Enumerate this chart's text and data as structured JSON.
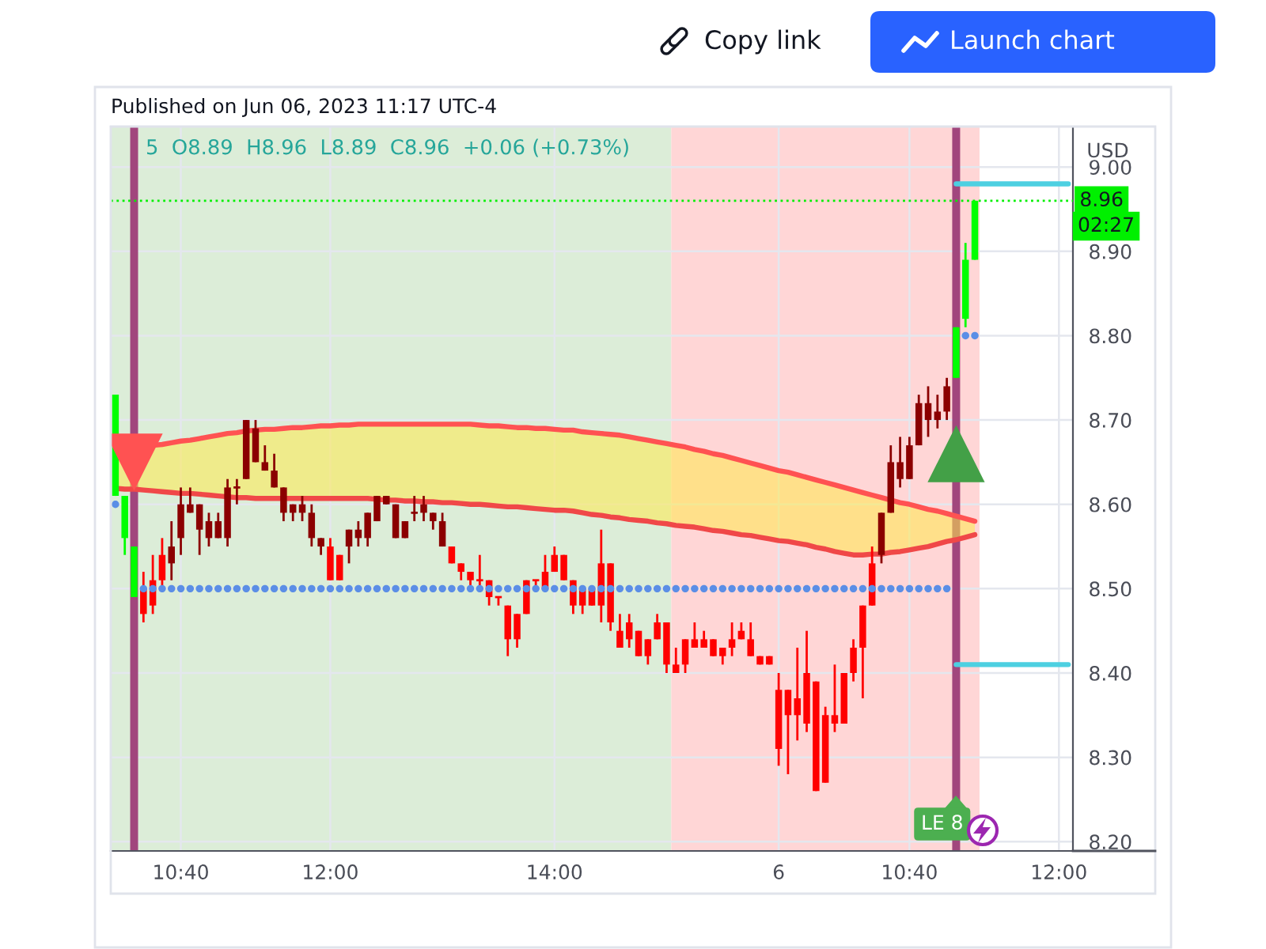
{
  "chart_data": {
    "type": "candlestick",
    "title": "Published on Jun 06, 2023 11:17 UTC-4",
    "subtitle": "5  O8.89  H8.96  L8.89  C8.96  +0.06 (+0.73%)",
    "ylabel": "USD",
    "categories": [
      null,
      null,
      null,
      null,
      null,
      null,
      null,
      "10:40",
      null,
      null,
      null,
      null,
      null,
      null,
      null,
      null,
      null,
      null,
      null,
      null,
      null,
      null,
      null,
      "12:00",
      null,
      null,
      null,
      null,
      null,
      null,
      null,
      null,
      null,
      null,
      null,
      null,
      null,
      null,
      null,
      null,
      null,
      null,
      null,
      null,
      null,
      null,
      null,
      "14:00",
      null,
      null,
      null,
      null,
      null,
      null,
      null,
      null,
      null,
      null,
      null,
      null,
      null,
      null,
      null,
      null,
      null,
      null,
      null,
      null,
      null,
      null,
      null,
      "6",
      null,
      null,
      null,
      null,
      null,
      null,
      null,
      null,
      null,
      null,
      null,
      null,
      null,
      "10:40",
      null,
      null,
      null,
      null,
      null,
      null,
      null,
      null,
      null,
      null,
      null,
      null,
      null,
      null,
      null,
      "12:00",
      null
    ],
    "ohlc": [
      [
        8.61,
        8.73,
        8.61,
        8.73
      ],
      [
        8.56,
        8.61,
        8.54,
        8.61
      ],
      [
        8.49,
        8.55,
        8.49,
        8.55
      ],
      [
        8.5,
        8.52,
        8.46,
        8.47
      ],
      [
        8.51,
        8.54,
        8.47,
        8.48
      ],
      [
        8.54,
        8.56,
        8.5,
        8.51
      ],
      [
        8.55,
        8.58,
        8.51,
        8.53
      ],
      [
        8.6,
        8.62,
        8.54,
        8.56
      ],
      [
        8.6,
        8.62,
        8.59,
        8.59
      ],
      [
        8.6,
        8.6,
        8.54,
        8.57
      ],
      [
        8.58,
        8.59,
        8.55,
        8.56
      ],
      [
        8.58,
        8.59,
        8.56,
        8.56
      ],
      [
        8.62,
        8.63,
        8.55,
        8.56
      ],
      [
        8.62,
        8.63,
        8.6,
        8.62
      ],
      [
        8.7,
        8.7,
        8.63,
        8.63
      ],
      [
        8.69,
        8.7,
        8.65,
        8.65
      ],
      [
        8.65,
        8.67,
        8.64,
        8.64
      ],
      [
        8.64,
        8.66,
        8.62,
        8.62
      ],
      [
        8.62,
        8.62,
        8.58,
        8.59
      ],
      [
        8.6,
        8.6,
        8.58,
        8.59
      ],
      [
        8.6,
        8.61,
        8.58,
        8.59
      ],
      [
        8.59,
        8.6,
        8.55,
        8.56
      ],
      [
        8.56,
        8.56,
        8.54,
        8.55
      ],
      [
        8.55,
        8.56,
        8.51,
        8.51
      ],
      [
        8.54,
        8.54,
        8.51,
        8.51
      ],
      [
        8.57,
        8.57,
        8.53,
        8.55
      ],
      [
        8.57,
        8.58,
        8.55,
        8.56
      ],
      [
        8.59,
        8.59,
        8.55,
        8.56
      ],
      [
        8.61,
        8.61,
        8.58,
        8.58
      ],
      [
        8.61,
        8.61,
        8.6,
        8.6
      ],
      [
        8.6,
        8.6,
        8.56,
        8.56
      ],
      [
        8.58,
        8.58,
        8.56,
        8.56
      ],
      [
        8.59,
        8.61,
        8.58,
        8.59
      ],
      [
        8.6,
        8.61,
        8.58,
        8.59
      ],
      [
        8.59,
        8.59,
        8.57,
        8.58
      ],
      [
        8.58,
        8.59,
        8.55,
        8.55
      ],
      [
        8.55,
        8.55,
        8.53,
        8.53
      ],
      [
        8.53,
        8.53,
        8.51,
        8.52
      ],
      [
        8.52,
        8.52,
        8.5,
        8.51
      ],
      [
        8.51,
        8.54,
        8.5,
        8.51
      ],
      [
        8.51,
        8.51,
        8.48,
        8.49
      ],
      [
        8.49,
        8.49,
        8.48,
        8.49
      ],
      [
        8.48,
        8.48,
        8.42,
        8.44
      ],
      [
        8.47,
        8.47,
        8.43,
        8.44
      ],
      [
        8.51,
        8.51,
        8.47,
        8.47
      ],
      [
        8.51,
        8.51,
        8.5,
        8.51
      ],
      [
        8.52,
        8.54,
        8.5,
        8.5
      ],
      [
        8.54,
        8.55,
        8.52,
        8.52
      ],
      [
        8.54,
        8.54,
        8.51,
        8.51
      ],
      [
        8.51,
        8.51,
        8.47,
        8.48
      ],
      [
        8.5,
        8.5,
        8.47,
        8.48
      ],
      [
        8.5,
        8.5,
        8.48,
        8.48
      ],
      [
        8.53,
        8.57,
        8.46,
        8.48
      ],
      [
        8.53,
        8.53,
        8.45,
        8.46
      ],
      [
        8.45,
        8.47,
        8.43,
        8.43
      ],
      [
        8.46,
        8.47,
        8.43,
        8.44
      ],
      [
        8.45,
        8.45,
        8.42,
        8.42
      ],
      [
        8.44,
        8.44,
        8.41,
        8.42
      ],
      [
        8.46,
        8.47,
        8.44,
        8.44
      ],
      [
        8.46,
        8.46,
        8.4,
        8.41
      ],
      [
        8.41,
        8.43,
        8.4,
        8.4
      ],
      [
        8.44,
        8.44,
        8.4,
        8.41
      ],
      [
        8.44,
        8.46,
        8.43,
        8.43
      ],
      [
        8.44,
        8.45,
        8.43,
        8.43
      ],
      [
        8.44,
        8.44,
        8.42,
        8.42
      ],
      [
        8.43,
        8.43,
        8.41,
        8.42
      ],
      [
        8.44,
        8.46,
        8.42,
        8.43
      ],
      [
        8.45,
        8.46,
        8.44,
        8.44
      ],
      [
        8.44,
        8.46,
        8.42,
        8.42
      ],
      [
        8.42,
        8.42,
        8.41,
        8.41
      ],
      [
        8.42,
        8.42,
        8.41,
        8.41
      ],
      [
        8.38,
        8.4,
        8.29,
        8.31
      ],
      [
        8.38,
        8.38,
        8.28,
        8.35
      ],
      [
        8.37,
        8.43,
        8.32,
        8.35
      ],
      [
        8.4,
        8.45,
        8.33,
        8.34
      ],
      [
        8.39,
        8.39,
        8.26,
        8.26
      ],
      [
        8.35,
        8.36,
        8.27,
        8.27
      ],
      [
        8.35,
        8.41,
        8.33,
        8.34
      ],
      [
        8.4,
        8.4,
        8.34,
        8.34
      ],
      [
        8.43,
        8.44,
        8.39,
        8.4
      ],
      [
        8.48,
        8.48,
        8.37,
        8.43
      ],
      [
        8.53,
        8.55,
        8.48,
        8.48
      ],
      [
        8.59,
        8.59,
        8.53,
        8.54
      ],
      [
        8.65,
        8.67,
        8.59,
        8.59
      ],
      [
        8.65,
        8.68,
        8.62,
        8.63
      ],
      [
        8.67,
        8.68,
        8.63,
        8.63
      ],
      [
        8.72,
        8.73,
        8.67,
        8.67
      ],
      [
        8.72,
        8.74,
        8.68,
        8.7
      ],
      [
        8.71,
        8.73,
        8.69,
        8.7
      ],
      [
        8.74,
        8.75,
        8.7,
        8.71
      ],
      [
        8.75,
        8.81,
        8.75,
        8.81
      ],
      [
        8.82,
        8.91,
        8.81,
        8.89
      ],
      [
        8.89,
        8.96,
        8.89,
        8.96
      ],
      null,
      null,
      null,
      null,
      null,
      null,
      null,
      null,
      null,
      null
    ],
    "colors": [
      "#00ff00",
      "#00ff00",
      "#00ff00",
      "#ff0000",
      "#ff0000",
      "#ff0000",
      "#8b0000",
      "#8b0000",
      "#8b0000",
      "#8b0000",
      "#8b0000",
      "#8b0000",
      "#8b0000",
      "#8b0000",
      "#8b0000",
      "#8b0000",
      "#8b0000",
      "#8b0000",
      "#8b0000",
      "#8b0000",
      "#8b0000",
      "#8b0000",
      "#8b0000",
      "#ff0000",
      "#ff0000",
      "#8b0000",
      "#8b0000",
      "#8b0000",
      "#8b0000",
      "#8b0000",
      "#8b0000",
      "#8b0000",
      "#8b0000",
      "#8b0000",
      "#8b0000",
      "#8b0000",
      "#ff0000",
      "#ff0000",
      "#ff0000",
      "#ff0000",
      "#ff0000",
      "#ff0000",
      "#ff0000",
      "#ff0000",
      "#ff0000",
      "#ff0000",
      "#ff0000",
      "#ff0000",
      "#ff0000",
      "#ff0000",
      "#ff0000",
      "#ff0000",
      "#ff0000",
      "#ff0000",
      "#ff0000",
      "#ff0000",
      "#ff0000",
      "#ff0000",
      "#ff0000",
      "#ff0000",
      "#ff0000",
      "#ff0000",
      "#ff0000",
      "#ff0000",
      "#ff0000",
      "#ff0000",
      "#ff0000",
      "#ff0000",
      "#ff0000",
      "#ff0000",
      "#ff0000",
      "#ff0000",
      "#ff0000",
      "#ff0000",
      "#ff0000",
      "#ff0000",
      "#ff0000",
      "#ff0000",
      "#ff0000",
      "#ff0000",
      "#ff0000",
      "#ff0000",
      "#8b0000",
      "#8b0000",
      "#8b0000",
      "#8b0000",
      "#8b0000",
      "#8b0000",
      "#8b0000",
      "#8b0000",
      "#00ff00",
      "#00ff00",
      "#00ff00",
      null,
      null,
      null,
      null,
      null,
      null,
      null,
      null,
      null,
      null
    ],
    "series": [
      {
        "type": "line",
        "color": "#ff5252",
        "values": [
          8.665,
          8.666,
          8.667,
          8.668,
          8.67,
          8.671,
          8.673,
          8.675,
          8.676,
          8.678,
          8.68,
          8.682,
          8.684,
          8.685,
          8.687,
          8.688,
          8.689,
          8.689,
          8.69,
          8.691,
          8.691,
          8.692,
          8.693,
          8.693,
          8.694,
          8.694,
          8.695,
          8.695,
          8.695,
          8.695,
          8.695,
          8.695,
          8.695,
          8.695,
          8.695,
          8.695,
          8.695,
          8.695,
          8.695,
          8.694,
          8.693,
          8.693,
          8.692,
          8.691,
          8.691,
          8.69,
          8.69,
          8.689,
          8.688,
          8.688,
          8.686,
          8.685,
          8.684,
          8.683,
          8.682,
          8.68,
          8.678,
          8.676,
          8.674,
          8.672,
          8.67,
          8.668,
          8.665,
          8.663,
          8.66,
          8.658,
          8.655,
          8.652,
          8.649,
          8.646,
          8.643,
          8.64,
          8.638,
          8.635,
          8.632,
          8.629,
          8.626,
          8.623,
          8.62,
          8.617,
          8.614,
          8.611,
          8.608,
          8.605,
          8.602,
          8.6,
          8.597,
          8.594,
          8.592,
          8.589,
          8.586,
          8.583,
          8.58,
          null,
          null,
          null,
          null,
          null,
          null,
          null,
          null,
          null,
          null
        ],
        "upper": [
          8.665,
          8.666,
          8.667,
          8.668,
          8.67,
          8.671,
          8.673,
          8.675,
          8.676,
          8.678,
          8.68,
          8.682,
          8.684,
          8.685,
          8.687,
          8.688,
          8.689,
          8.689,
          8.69,
          8.691,
          8.691,
          8.692,
          8.693,
          8.693,
          8.694,
          8.694,
          8.695,
          8.695,
          8.695,
          8.695,
          8.695,
          8.695,
          8.695,
          8.695,
          8.695,
          8.695,
          8.695,
          8.695,
          8.695,
          8.694,
          8.693,
          8.693,
          8.692,
          8.691,
          8.691,
          8.69,
          8.69,
          8.689,
          8.688,
          8.688,
          8.686,
          8.685,
          8.684,
          8.683,
          8.682,
          8.68,
          8.678,
          8.676,
          8.674,
          8.672,
          8.67,
          8.668,
          8.665,
          8.663,
          8.66,
          8.658,
          8.655,
          8.652,
          8.649,
          8.646,
          8.643,
          8.64,
          8.638,
          8.635,
          8.632,
          8.629,
          8.626,
          8.623,
          8.62,
          8.617,
          8.614,
          8.611,
          8.608,
          8.605,
          8.602,
          8.6,
          8.597,
          8.594,
          8.592,
          8.589,
          8.586,
          8.583,
          8.58,
          null,
          null,
          null,
          null,
          null,
          null,
          null,
          null,
          null,
          null
        ],
        "lower": [
          8.619,
          8.618,
          8.618,
          8.617,
          8.616,
          8.615,
          8.614,
          8.613,
          8.613,
          8.612,
          8.611,
          8.61,
          8.609,
          8.608,
          8.608,
          8.607,
          8.607,
          8.607,
          8.607,
          8.607,
          8.607,
          8.607,
          8.607,
          8.607,
          8.607,
          8.607,
          8.607,
          8.607,
          8.606,
          8.605,
          8.605,
          8.604,
          8.604,
          8.603,
          8.603,
          8.602,
          8.602,
          8.601,
          8.6,
          8.6,
          8.599,
          8.598,
          8.597,
          8.597,
          8.596,
          8.595,
          8.594,
          8.593,
          8.593,
          8.592,
          8.59,
          8.588,
          8.587,
          8.585,
          8.584,
          8.582,
          8.581,
          8.58,
          8.578,
          8.577,
          8.575,
          8.574,
          8.573,
          8.571,
          8.569,
          8.568,
          8.566,
          8.564,
          8.563,
          8.561,
          8.559,
          8.557,
          8.556,
          8.554,
          8.552,
          8.549,
          8.547,
          8.544,
          8.542,
          8.54,
          8.54,
          8.541,
          8.541,
          8.543,
          8.544,
          8.546,
          8.548,
          8.55,
          8.553,
          8.556,
          8.558,
          8.561,
          8.564,
          null,
          null,
          null,
          null,
          null,
          null,
          null,
          null,
          null,
          null
        ]
      },
      {
        "type": "line",
        "color": "#f04848",
        "values": [
          8.619,
          8.618,
          8.618,
          8.617,
          8.616,
          8.615,
          8.614,
          8.613,
          8.613,
          8.612,
          8.611,
          8.61,
          8.609,
          8.608,
          8.608,
          8.607,
          8.607,
          8.607,
          8.607,
          8.607,
          8.607,
          8.607,
          8.607,
          8.607,
          8.607,
          8.607,
          8.607,
          8.607,
          8.606,
          8.605,
          8.605,
          8.604,
          8.604,
          8.603,
          8.603,
          8.602,
          8.602,
          8.601,
          8.6,
          8.6,
          8.599,
          8.598,
          8.597,
          8.597,
          8.596,
          8.595,
          8.594,
          8.593,
          8.593,
          8.592,
          8.59,
          8.588,
          8.587,
          8.585,
          8.584,
          8.582,
          8.581,
          8.58,
          8.578,
          8.577,
          8.575,
          8.574,
          8.573,
          8.571,
          8.569,
          8.568,
          8.566,
          8.564,
          8.563,
          8.561,
          8.559,
          8.557,
          8.556,
          8.554,
          8.552,
          8.549,
          8.547,
          8.544,
          8.542,
          8.54,
          8.54,
          8.541,
          8.541,
          8.543,
          8.544,
          8.546,
          8.548,
          8.55,
          8.553,
          8.556,
          8.558,
          8.561,
          8.564,
          null,
          null,
          null,
          null,
          null,
          null,
          null,
          null,
          null,
          null
        ]
      },
      {
        "type": "scatter",
        "color": "#5b8ee6",
        "marker": "circle",
        "values": [
          8.6,
          null,
          null,
          8.5,
          8.5,
          8.5,
          8.5,
          8.5,
          8.5,
          8.5,
          8.5,
          8.5,
          8.5,
          8.5,
          8.5,
          8.5,
          8.5,
          8.5,
          8.5,
          8.5,
          8.5,
          8.5,
          8.5,
          8.5,
          8.5,
          8.5,
          8.5,
          8.5,
          8.5,
          8.5,
          8.5,
          8.5,
          8.5,
          8.5,
          8.5,
          8.5,
          8.5,
          8.5,
          8.5,
          8.5,
          8.5,
          8.5,
          8.5,
          8.5,
          8.5,
          8.5,
          8.5,
          8.5,
          8.5,
          8.5,
          8.5,
          8.5,
          8.5,
          8.5,
          8.5,
          8.5,
          8.5,
          8.5,
          8.5,
          8.5,
          8.5,
          8.5,
          8.5,
          8.5,
          8.5,
          8.5,
          8.5,
          8.5,
          8.5,
          8.5,
          8.5,
          8.5,
          8.5,
          8.5,
          8.5,
          8.5,
          8.5,
          8.5,
          8.5,
          8.5,
          8.5,
          8.5,
          8.5,
          8.5,
          8.5,
          8.5,
          8.5,
          8.5,
          8.5,
          8.5,
          null,
          8.8,
          8.8,
          null,
          null,
          null,
          null,
          null,
          null,
          null,
          null,
          null,
          null
        ]
      },
      {
        "type": "line",
        "color": "#4dd0e1",
        "values": [
          null,
          null,
          null,
          null,
          null,
          null,
          null,
          null,
          null,
          null,
          null,
          null,
          null,
          null,
          null,
          null,
          null,
          null,
          null,
          null,
          null,
          null,
          null,
          null,
          null,
          null,
          null,
          null,
          null,
          null,
          null,
          null,
          null,
          null,
          null,
          null,
          null,
          null,
          null,
          null,
          null,
          null,
          null,
          null,
          null,
          null,
          null,
          null,
          null,
          null,
          null,
          null,
          null,
          null,
          null,
          null,
          null,
          null,
          null,
          null,
          null,
          null,
          null,
          null,
          null,
          null,
          null,
          null,
          null,
          null,
          null,
          null,
          null,
          null,
          null,
          null,
          null,
          null,
          null,
          null,
          null,
          null,
          null,
          null,
          null,
          null,
          null,
          null,
          null,
          null,
          8.98,
          8.98,
          8.98,
          8.98,
          8.98,
          8.98,
          8.98,
          8.98,
          8.98,
          8.98,
          8.98,
          8.98,
          8.98
        ]
      },
      {
        "type": "line",
        "color": "#4dd0e1",
        "values": [
          null,
          null,
          null,
          null,
          null,
          null,
          null,
          null,
          null,
          null,
          null,
          null,
          null,
          null,
          null,
          null,
          null,
          null,
          null,
          null,
          null,
          null,
          null,
          null,
          null,
          null,
          null,
          null,
          null,
          null,
          null,
          null,
          null,
          null,
          null,
          null,
          null,
          null,
          null,
          null,
          null,
          null,
          null,
          null,
          null,
          null,
          null,
          null,
          null,
          null,
          null,
          null,
          null,
          null,
          null,
          null,
          null,
          null,
          null,
          null,
          null,
          null,
          null,
          null,
          null,
          null,
          null,
          null,
          null,
          null,
          null,
          null,
          null,
          null,
          null,
          null,
          null,
          null,
          null,
          null,
          null,
          null,
          null,
          null,
          null,
          null,
          null,
          null,
          null,
          null,
          8.41,
          8.41,
          8.41,
          8.41,
          8.41,
          8.41,
          8.41,
          8.41,
          8.41,
          8.41,
          8.41,
          8.41,
          8.41
        ]
      },
      {
        "type": "scatter",
        "color": "#ff5252",
        "marker": "triangle_down",
        "values": [
          null,
          null,
          8.65,
          null,
          null,
          null,
          null,
          null,
          null,
          null,
          null,
          null,
          null,
          null,
          null,
          null,
          null,
          null,
          null,
          null,
          null,
          null,
          null,
          null,
          null,
          null,
          null,
          null,
          null,
          null,
          null,
          null,
          null,
          null,
          null,
          null,
          null,
          null,
          null,
          null,
          null,
          null,
          null,
          null,
          null,
          null,
          null,
          null,
          null,
          null,
          null,
          null,
          null,
          null,
          null,
          null,
          null,
          null,
          null,
          null,
          null,
          null,
          null,
          null,
          null,
          null,
          null,
          null,
          null,
          null,
          null,
          null,
          null,
          null,
          null,
          null,
          null,
          null,
          null,
          null,
          null,
          null,
          null,
          null,
          null,
          null,
          null,
          null,
          null,
          null,
          null,
          null,
          null,
          null,
          null,
          null,
          null,
          null,
          null,
          null,
          null,
          null,
          null
        ]
      },
      {
        "type": "scatter",
        "color": "#43a047",
        "marker": "triangle",
        "values": [
          null,
          null,
          null,
          null,
          null,
          null,
          null,
          null,
          null,
          null,
          null,
          null,
          null,
          null,
          null,
          null,
          null,
          null,
          null,
          null,
          null,
          null,
          null,
          null,
          null,
          null,
          null,
          null,
          null,
          null,
          null,
          null,
          null,
          null,
          null,
          null,
          null,
          null,
          null,
          null,
          null,
          null,
          null,
          null,
          null,
          null,
          null,
          null,
          null,
          null,
          null,
          null,
          null,
          null,
          null,
          null,
          null,
          null,
          null,
          null,
          null,
          null,
          null,
          null,
          null,
          null,
          null,
          null,
          null,
          null,
          null,
          null,
          null,
          null,
          null,
          null,
          null,
          null,
          null,
          null,
          null,
          null,
          null,
          null,
          null,
          null,
          null,
          null,
          null,
          null,
          8.66,
          null,
          null,
          null,
          null,
          null,
          null,
          null,
          null,
          null,
          null,
          null,
          null
        ]
      }
    ],
    "ylim": [
      8.189,
      9.048
    ],
    "yticks": [
      {
        "value": 8.2,
        "label": "8.20"
      },
      {
        "value": 8.3,
        "label": "8.30"
      },
      {
        "value": 8.4,
        "label": "8.40"
      },
      {
        "value": 8.5,
        "label": "8.50"
      },
      {
        "value": 8.6,
        "label": "8.60"
      },
      {
        "value": 8.7,
        "label": "8.70"
      },
      {
        "value": 8.8,
        "label": "8.80"
      },
      {
        "value": 8.9,
        "label": "8.90"
      },
      {
        "value": 9.0,
        "label": "9.00"
      }
    ],
    "grid": true,
    "ref_lines": [
      {
        "axis": "y",
        "value": 8.96,
        "label": "8.96",
        "color": "#00f000",
        "line_style": "dotted"
      }
    ],
    "annotations": [
      "Copy link",
      "Launch chart",
      "LE 8",
      "02:27"
    ]
  }
}
